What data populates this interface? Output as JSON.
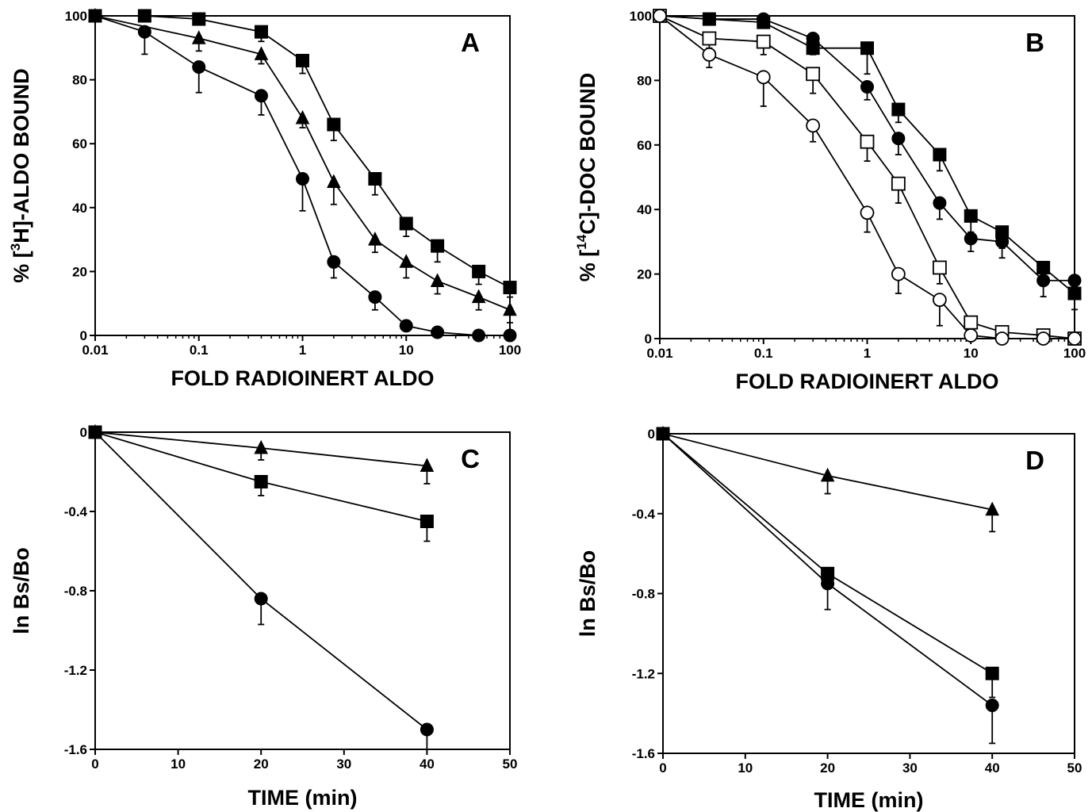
{
  "figure": {
    "panels": [
      "A",
      "B",
      "C",
      "D"
    ]
  },
  "chart_data": [
    {
      "panel": "A",
      "type": "line",
      "xscale": "log",
      "xlim": [
        0.01,
        100
      ],
      "ylim": [
        0,
        100
      ],
      "xticks": [
        0.01,
        0.1,
        1,
        10,
        100
      ],
      "xtick_labels": [
        "0.01",
        "0.1",
        "1",
        "10",
        "100"
      ],
      "yticks": [
        0,
        20,
        40,
        60,
        80,
        100
      ],
      "ytick_labels": [
        "0",
        "20",
        "40",
        "60",
        "80",
        "100"
      ],
      "xlabel": "FOLD RADIOINERT ALDO",
      "ylabel_parts": [
        "% [",
        "3",
        "H]-ALDO BOUND"
      ],
      "grid": false,
      "series": [
        {
          "marker": "square-filled",
          "x": [
            0.01,
            0.03,
            0.1,
            0.4,
            1,
            2,
            5,
            10,
            20,
            50,
            100
          ],
          "y": [
            100,
            100,
            99,
            95,
            86,
            66,
            49,
            35,
            28,
            20,
            15
          ],
          "err": [
            0,
            0,
            1,
            3,
            4,
            5,
            5,
            4,
            5,
            4,
            3
          ]
        },
        {
          "marker": "triangle-filled",
          "x": [
            0.01,
            0.1,
            0.4,
            1,
            2,
            5,
            10,
            20,
            50,
            100
          ],
          "y": [
            100,
            93,
            88,
            68,
            48,
            30,
            23,
            17,
            12,
            8
          ],
          "err": [
            0,
            4,
            3,
            3,
            7,
            4,
            5,
            4,
            4,
            4
          ]
        },
        {
          "marker": "circle-filled",
          "x": [
            0.01,
            0.03,
            0.1,
            0.4,
            1,
            2,
            5,
            10,
            20,
            50,
            100
          ],
          "y": [
            100,
            95,
            84,
            75,
            49,
            23,
            12,
            3,
            1,
            0,
            0
          ],
          "err": [
            0,
            7,
            8,
            6,
            10,
            5,
            4,
            1,
            1,
            0,
            0
          ]
        }
      ]
    },
    {
      "panel": "B",
      "type": "line",
      "xscale": "log",
      "xlim": [
        0.01,
        100
      ],
      "ylim": [
        0,
        100
      ],
      "xticks": [
        0.01,
        0.1,
        1,
        10,
        100
      ],
      "xtick_labels": [
        "0.01",
        "0.1",
        "1",
        "10",
        "100"
      ],
      "yticks": [
        0,
        20,
        40,
        60,
        80,
        100
      ],
      "ytick_labels": [
        "0",
        "20",
        "40",
        "60",
        "80",
        "100"
      ],
      "xlabel": "FOLD RADIOINERT ALDO",
      "ylabel_parts": [
        "% [",
        "14",
        "C]-DOC BOUND"
      ],
      "grid": false,
      "series": [
        {
          "marker": "square-filled",
          "x": [
            0.01,
            0.03,
            0.1,
            0.3,
            1,
            2,
            5,
            10,
            20,
            50,
            100
          ],
          "y": [
            100,
            99,
            98,
            90,
            90,
            71,
            57,
            38,
            33,
            22,
            14
          ],
          "err": [
            0,
            0,
            1,
            2,
            8,
            4,
            5,
            5,
            5,
            5,
            5
          ]
        },
        {
          "marker": "circle-filled",
          "x": [
            0.01,
            0.03,
            0.1,
            0.3,
            1,
            2,
            5,
            10,
            20,
            50,
            100
          ],
          "y": [
            100,
            99,
            99,
            93,
            78,
            62,
            42,
            31,
            30,
            18,
            18
          ],
          "err": [
            0,
            0,
            1,
            2,
            4,
            5,
            5,
            4,
            5,
            5,
            5
          ]
        },
        {
          "marker": "square-open",
          "x": [
            0.01,
            0.03,
            0.1,
            0.3,
            1,
            2,
            5,
            10,
            20,
            50,
            100
          ],
          "y": [
            100,
            93,
            92,
            82,
            61,
            48,
            22,
            5,
            2,
            1,
            0
          ],
          "err": [
            0,
            3,
            4,
            6,
            6,
            6,
            5,
            1,
            0,
            0,
            0
          ]
        },
        {
          "marker": "circle-open",
          "x": [
            0.01,
            0.03,
            0.1,
            0.3,
            1,
            2,
            5,
            10,
            20,
            50,
            100
          ],
          "y": [
            100,
            88,
            81,
            66,
            39,
            20,
            12,
            1,
            0,
            0,
            0
          ],
          "err": [
            0,
            4,
            9,
            5,
            6,
            6,
            8,
            0,
            0,
            0,
            0
          ]
        }
      ]
    },
    {
      "panel": "C",
      "type": "line",
      "xscale": "linear",
      "xlim": [
        0,
        50
      ],
      "ylim": [
        -1.6,
        0
      ],
      "xticks": [
        0,
        10,
        20,
        30,
        40,
        50
      ],
      "xtick_labels": [
        "0",
        "10",
        "20",
        "30",
        "40",
        "50"
      ],
      "yticks": [
        0,
        -0.4,
        -0.8,
        -1.2,
        -1.6
      ],
      "ytick_labels": [
        "0",
        "-0.4",
        "-0.8",
        "-1.2",
        "-1.6"
      ],
      "xlabel": "TIME (min)",
      "ylabel": "ln Bs/Bo",
      "grid": false,
      "series": [
        {
          "marker": "triangle-filled",
          "x": [
            0,
            20,
            40
          ],
          "y": [
            0,
            -0.08,
            -0.17
          ],
          "err": [
            0,
            0.06,
            0.09
          ]
        },
        {
          "marker": "square-filled",
          "x": [
            0,
            20,
            40
          ],
          "y": [
            0,
            -0.25,
            -0.45
          ],
          "err": [
            0,
            0.07,
            0.1
          ]
        },
        {
          "marker": "circle-filled",
          "x": [
            0,
            20,
            40
          ],
          "y": [
            0,
            -0.84,
            -1.5
          ],
          "err": [
            0,
            0.13,
            0.1
          ]
        }
      ]
    },
    {
      "panel": "D",
      "type": "line",
      "xscale": "linear",
      "xlim": [
        0,
        50
      ],
      "ylim": [
        -1.6,
        0
      ],
      "xticks": [
        0,
        10,
        20,
        30,
        40,
        50
      ],
      "xtick_labels": [
        "0",
        "10",
        "20",
        "30",
        "40",
        "50"
      ],
      "yticks": [
        0,
        -0.4,
        -0.8,
        -1.2,
        -1.6
      ],
      "ytick_labels": [
        "0",
        "-0.4",
        "-0.8",
        "-1.2",
        "-1.6"
      ],
      "xlabel": "TIME (min)",
      "ylabel": "ln Bs/Bo",
      "grid": false,
      "series": [
        {
          "marker": "triangle-filled",
          "x": [
            0,
            20,
            40
          ],
          "y": [
            0,
            -0.21,
            -0.38
          ],
          "err": [
            0,
            0.09,
            0.11
          ]
        },
        {
          "marker": "square-filled",
          "x": [
            0,
            20,
            40
          ],
          "y": [
            0,
            -0.7,
            -1.2
          ],
          "err": [
            0,
            0.06,
            0.12
          ]
        },
        {
          "marker": "circle-filled",
          "x": [
            0,
            20,
            40
          ],
          "y": [
            0,
            -0.75,
            -1.36
          ],
          "err": [
            0,
            0.13,
            0.19
          ]
        }
      ]
    }
  ]
}
